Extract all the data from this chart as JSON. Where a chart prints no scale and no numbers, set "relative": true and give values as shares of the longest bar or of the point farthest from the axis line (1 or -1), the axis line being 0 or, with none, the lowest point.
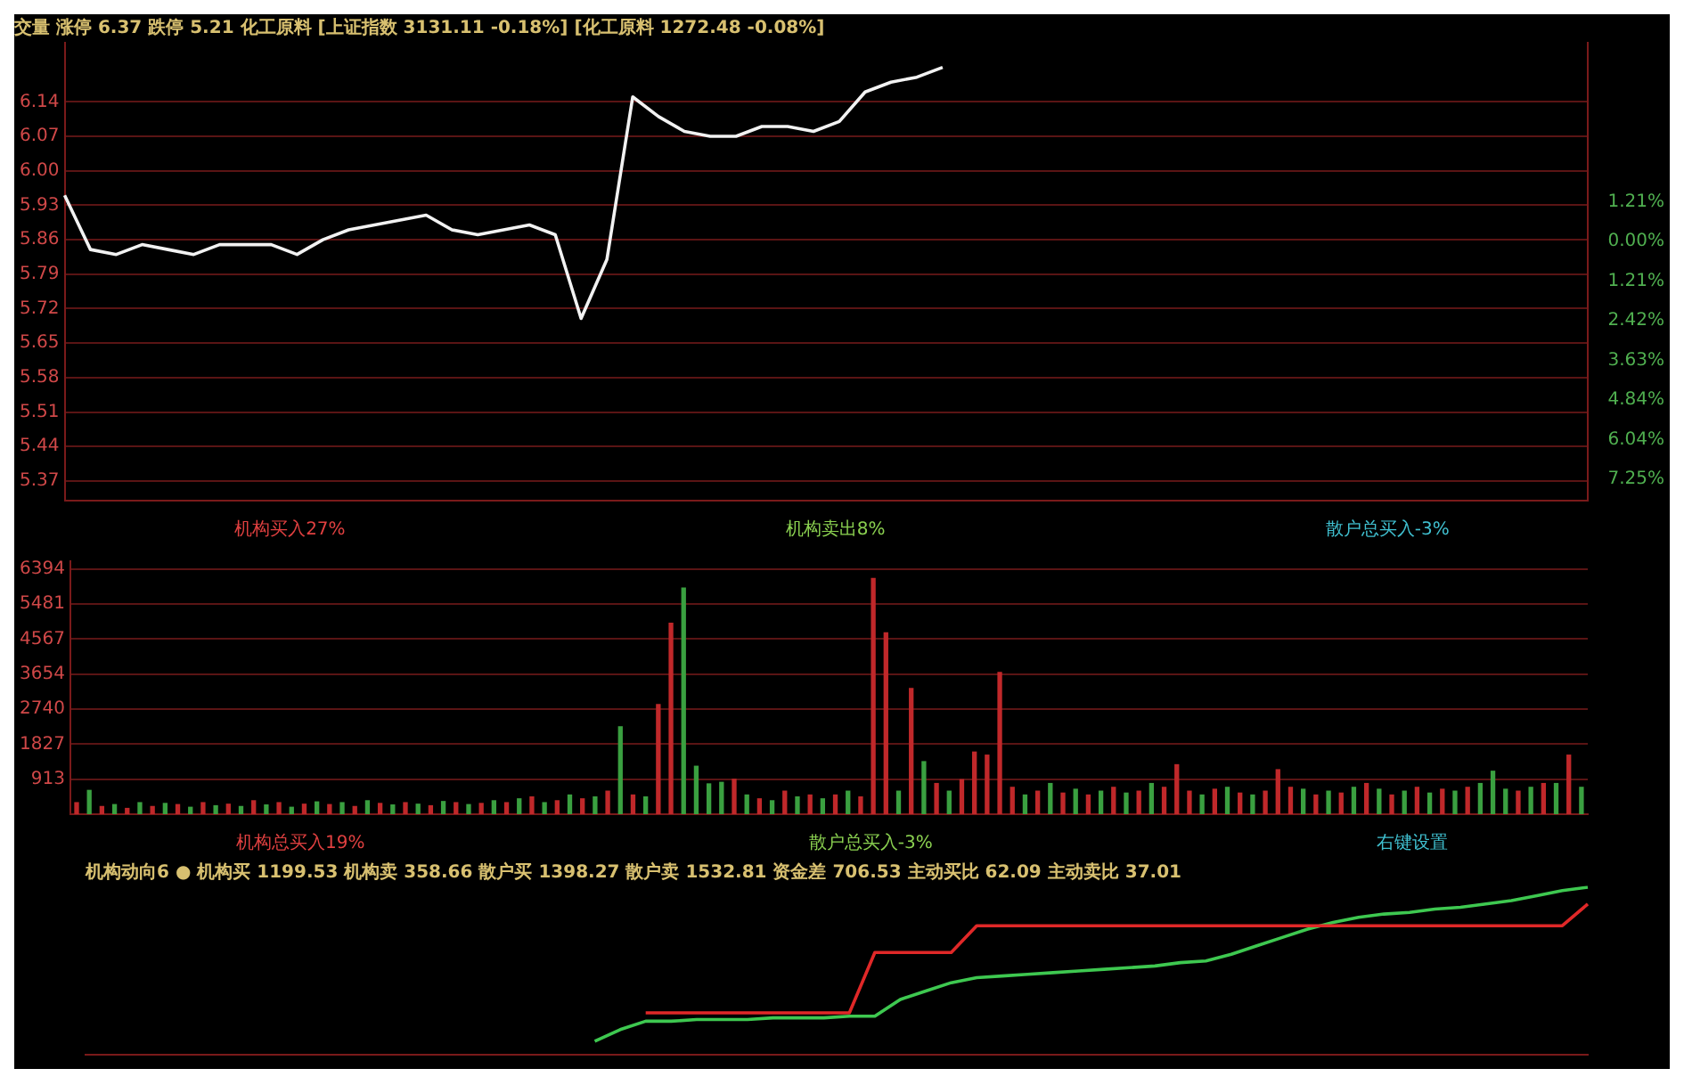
{
  "chart_data": [
    {
      "type": "line",
      "title": "交量 涨停 6.37 跌停 5.21 化工原料 [上证指数 3131.11 -0.18%] [化工原料 1272.48 -0.08%]",
      "categories": [
        null,
        null,
        null,
        null,
        null,
        null,
        null,
        null,
        null,
        null,
        null,
        null,
        null,
        null,
        null,
        null,
        null,
        null,
        null,
        null,
        null,
        null,
        null,
        null,
        null,
        null,
        null,
        null,
        null,
        null,
        null,
        null,
        null,
        null,
        null,
        null,
        null,
        null,
        null,
        null,
        null,
        null,
        null,
        null,
        null,
        null,
        null,
        null,
        null,
        null,
        null,
        null,
        null,
        null,
        null,
        null,
        null,
        null,
        null,
        null
      ],
      "ylim": [
        5.33,
        6.26
      ],
      "yticks": [
        6.14,
        6.07,
        {
          "value": 6.0,
          "label": "6.00"
        },
        5.93,
        5.86,
        5.79,
        5.72,
        5.65,
        5.58,
        5.51,
        5.44,
        5.37
      ],
      "y2lim": [
        -7.9,
        6.05
      ],
      "y2ticks": [
        {
          "value": 1.21,
          "label": "1.21%"
        },
        {
          "value": 0,
          "label": "0.00%"
        },
        {
          "value": -1.21,
          "label": "1.21%"
        },
        {
          "value": -2.42,
          "label": "2.42%"
        },
        {
          "value": -3.63,
          "label": "3.63%"
        },
        {
          "value": -4.84,
          "label": "4.84%"
        },
        {
          "value": -6.04,
          "label": "6.04%"
        },
        {
          "value": -7.25,
          "label": "7.25%"
        }
      ],
      "tick_labels": "y",
      "grid": "y",
      "legend": false,
      "marker": "none",
      "line_style": "solid",
      "series": [
        {
          "color": "#f2f2f2",
          "values": [
            5.95,
            5.84,
            5.83,
            5.85,
            5.84,
            5.83,
            5.85,
            5.85,
            5.85,
            5.83,
            5.86,
            5.88,
            5.89,
            5.9,
            5.91,
            5.88,
            5.87,
            5.88,
            5.89,
            5.87,
            5.7,
            5.82,
            6.15,
            6.11,
            6.08,
            6.07,
            6.07,
            6.09,
            6.09,
            6.08,
            6.1,
            6.16,
            6.18,
            6.19,
            6.21,
            null,
            null,
            null,
            null,
            null,
            null,
            null,
            null,
            null,
            null,
            null,
            null,
            null,
            null,
            null,
            null,
            null,
            null,
            null,
            null,
            null,
            null,
            null,
            null,
            null
          ]
        }
      ]
    },
    {
      "type": "bar",
      "annotations": [
        "机构买入27%",
        "机构卖出8%",
        "散户总买入-3%"
      ],
      "categories": [
        null,
        null,
        null,
        null,
        null,
        null,
        null,
        null,
        null,
        null,
        null,
        null,
        null,
        null,
        null,
        null,
        null,
        null,
        null,
        null,
        null,
        null,
        null,
        null,
        null,
        null,
        null,
        null,
        null,
        null,
        null,
        null,
        null,
        null,
        null,
        null,
        null,
        null,
        null,
        null,
        null,
        null,
        null,
        null,
        null,
        null,
        null,
        null,
        null,
        null,
        null,
        null,
        null,
        null,
        null,
        null,
        null,
        null,
        null,
        null,
        null,
        null,
        null,
        null,
        null,
        null,
        null,
        null,
        null,
        null,
        null,
        null,
        null,
        null,
        null,
        null,
        null,
        null,
        null,
        null,
        null,
        null,
        null,
        null,
        null,
        null,
        null,
        null,
        null,
        null,
        null,
        null,
        null,
        null,
        null,
        null,
        null,
        null,
        null,
        null,
        null,
        null,
        null,
        null,
        null,
        null,
        null,
        null,
        null,
        null,
        null,
        null,
        null,
        null,
        null,
        null,
        null,
        null,
        null,
        null
      ],
      "ylim": [
        0,
        6600
      ],
      "yticks": [
        913,
        1827,
        2740,
        3654,
        4567,
        5481,
        6394
      ],
      "tick_labels": "y",
      "grid": "y",
      "legend": false,
      "values": [
        300,
        620,
        200,
        250,
        150,
        300,
        200,
        280,
        250,
        180,
        300,
        220,
        260,
        200,
        350,
        240,
        300,
        180,
        260,
        320,
        250,
        300,
        200,
        350,
        280,
        240,
        300,
        260,
        220,
        330,
        300,
        250,
        280,
        350,
        300,
        400,
        450,
        300,
        350,
        500,
        400,
        450,
        600,
        2280,
        500,
        450,
        2860,
        4980,
        5900,
        1250,
        790,
        830,
        910,
        500,
        400,
        350,
        600,
        450,
        500,
        400,
        500,
        600,
        450,
        6150,
        4730,
        600,
        3280,
        1370,
        800,
        600,
        900,
        1620,
        1540,
        3700,
        700,
        500,
        600,
        800,
        550,
        650,
        500,
        600,
        700,
        550,
        600,
        800,
        700,
        1290,
        600,
        500,
        650,
        700,
        550,
        500,
        600,
        1160,
        700,
        650,
        500,
        600,
        550,
        700,
        800,
        650,
        500,
        600,
        700,
        550,
        650,
        600,
        700,
        800,
        1120,
        650,
        600,
        700,
        800,
        800,
        1540,
        700
      ],
      "colors": [
        "#c0282a",
        "#3aa040",
        "#c0282a",
        "#3aa040",
        "#c0282a",
        "#3aa040",
        "#c0282a",
        "#3aa040",
        "#c0282a",
        "#3aa040",
        "#c0282a",
        "#3aa040",
        "#c0282a",
        "#3aa040",
        "#c0282a",
        "#3aa040",
        "#c0282a",
        "#3aa040",
        "#c0282a",
        "#3aa040",
        "#c0282a",
        "#3aa040",
        "#c0282a",
        "#3aa040",
        "#c0282a",
        "#3aa040",
        "#c0282a",
        "#3aa040",
        "#c0282a",
        "#3aa040",
        "#c0282a",
        "#3aa040",
        "#c0282a",
        "#3aa040",
        "#c0282a",
        "#3aa040",
        "#c0282a",
        "#3aa040",
        "#c0282a",
        "#3aa040",
        "#c0282a",
        "#3aa040",
        "#c0282a",
        "#3aa040",
        "#c0282a",
        "#3aa040",
        "#c0282a",
        "#c0282a",
        "#3aa040",
        "#3aa040",
        "#3aa040",
        "#3aa040",
        "#c0282a",
        "#3aa040",
        "#c0282a",
        "#3aa040",
        "#c0282a",
        "#3aa040",
        "#c0282a",
        "#3aa040",
        "#c0282a",
        "#3aa040",
        "#c0282a",
        "#c0282a",
        "#c0282a",
        "#3aa040",
        "#c0282a",
        "#3aa040",
        "#c0282a",
        "#3aa040",
        "#c0282a",
        "#c0282a",
        "#c0282a",
        "#c0282a",
        "#c0282a",
        "#3aa040",
        "#c0282a",
        "#3aa040",
        "#c0282a",
        "#3aa040",
        "#c0282a",
        "#3aa040",
        "#c0282a",
        "#3aa040",
        "#c0282a",
        "#3aa040",
        "#c0282a",
        "#c0282a",
        "#c0282a",
        "#3aa040",
        "#c0282a",
        "#3aa040",
        "#c0282a",
        "#3aa040",
        "#c0282a",
        "#c0282a",
        "#c0282a",
        "#3aa040",
        "#c0282a",
        "#3aa040",
        "#c0282a",
        "#3aa040",
        "#c0282a",
        "#3aa040",
        "#c0282a",
        "#3aa040",
        "#c0282a",
        "#3aa040",
        "#c0282a",
        "#3aa040",
        "#c0282a",
        "#3aa040",
        "#3aa040",
        "#3aa040",
        "#c0282a",
        "#3aa040",
        "#c0282a",
        "#3aa040",
        "#c0282a",
        "#3aa040"
      ]
    },
    {
      "type": "line",
      "title": "机构动向6 ● 机构买 1199.53 机构卖 358.66 散户买 1398.27 散户卖 1532.81 资金差 706.53 主动买比 62.09 主动卖比 37.01",
      "annotations": [
        "机构总买入19%",
        "散户总买入-3%",
        "右键设置"
      ],
      "relative": true,
      "categories": [
        null,
        null,
        null,
        null,
        null,
        null,
        null,
        null,
        null,
        null,
        null,
        null,
        null,
        null,
        null,
        null,
        null,
        null,
        null,
        null,
        null,
        null,
        null,
        null,
        null,
        null,
        null,
        null,
        null,
        null,
        null,
        null,
        null,
        null,
        null,
        null,
        null,
        null,
        null,
        null,
        null,
        null,
        null,
        null,
        null,
        null,
        null,
        null,
        null,
        null,
        null,
        null,
        null,
        null,
        null,
        null,
        null,
        null,
        null,
        null
      ],
      "tick_labels": false,
      "grid": false,
      "legend": false,
      "marker": "none",
      "line_style": "solid",
      "series": [
        {
          "color": "#e02828",
          "values": [
            null,
            null,
            null,
            null,
            null,
            null,
            null,
            null,
            null,
            null,
            null,
            null,
            null,
            null,
            null,
            null,
            null,
            null,
            null,
            null,
            null,
            null,
            0.25,
            0.25,
            0.25,
            0.25,
            0.25,
            0.25,
            0.25,
            0.25,
            0.25,
            0.61,
            0.61,
            0.61,
            0.61,
            0.77,
            0.77,
            0.77,
            0.77,
            0.77,
            0.77,
            0.77,
            0.77,
            0.77,
            0.77,
            0.77,
            0.77,
            0.77,
            0.77,
            0.77,
            0.77,
            0.77,
            0.77,
            0.77,
            0.77,
            0.77,
            0.77,
            0.77,
            0.77,
            0.9
          ]
        },
        {
          "color": "#3ec850",
          "values": [
            null,
            null,
            null,
            null,
            null,
            null,
            null,
            null,
            null,
            null,
            null,
            null,
            null,
            null,
            null,
            null,
            null,
            null,
            null,
            null,
            0.08,
            0.15,
            0.2,
            0.2,
            0.21,
            0.21,
            0.21,
            0.22,
            0.22,
            0.22,
            0.23,
            0.23,
            0.33,
            0.38,
            0.43,
            0.46,
            0.47,
            0.48,
            0.49,
            0.5,
            0.51,
            0.52,
            0.53,
            0.55,
            0.56,
            0.6,
            0.65,
            0.7,
            0.75,
            0.79,
            0.82,
            0.84,
            0.85,
            0.87,
            0.88,
            0.9,
            0.92,
            0.95,
            0.98,
            1
          ]
        }
      ]
    }
  ]
}
